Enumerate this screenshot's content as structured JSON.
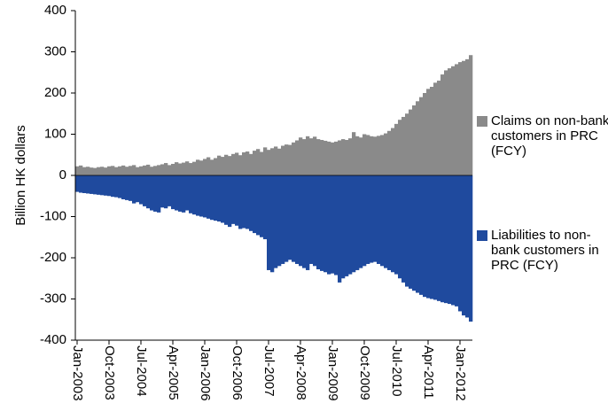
{
  "chart_data": {
    "type": "bar",
    "y_label": "Billion HK dollars",
    "categories": [
      "Jan-2003",
      null,
      null,
      null,
      null,
      null,
      null,
      null,
      null,
      "Oct-2003",
      null,
      null,
      null,
      null,
      null,
      null,
      null,
      null,
      "Jul-2004",
      null,
      null,
      null,
      null,
      null,
      null,
      null,
      null,
      "Apr-2005",
      null,
      null,
      null,
      null,
      null,
      null,
      null,
      null,
      "Jan-2006",
      null,
      null,
      null,
      null,
      null,
      null,
      null,
      null,
      "Oct-2006",
      null,
      null,
      null,
      null,
      null,
      null,
      null,
      null,
      "Jul-2007",
      null,
      null,
      null,
      null,
      null,
      null,
      null,
      null,
      "Apr-2008",
      null,
      null,
      null,
      null,
      null,
      null,
      null,
      null,
      "Jan-2009",
      null,
      null,
      null,
      null,
      null,
      null,
      null,
      null,
      "Oct-2009",
      null,
      null,
      null,
      null,
      null,
      null,
      null,
      null,
      "Jul-2010",
      null,
      null,
      null,
      null,
      null,
      null,
      null,
      null,
      "Apr-2011",
      null,
      null,
      null,
      null,
      null,
      null,
      null,
      null,
      "Jan-2012",
      null,
      null,
      null
    ],
    "series": [
      {
        "name": "Claims on non-bank customers in PRC (FCY)",
        "color": "#8a8a8a",
        "values": [
          22,
          24,
          20,
          21,
          19,
          18,
          20,
          21,
          19,
          22,
          23,
          20,
          22,
          24,
          21,
          23,
          25,
          20,
          22,
          24,
          26,
          21,
          23,
          25,
          27,
          30,
          25,
          28,
          32,
          29,
          31,
          34,
          30,
          33,
          38,
          36,
          40,
          44,
          38,
          42,
          48,
          45,
          50,
          47,
          52,
          55,
          49,
          56,
          58,
          52,
          60,
          64,
          57,
          68,
          62,
          66,
          70,
          65,
          72,
          75,
          74,
          80,
          85,
          92,
          88,
          95,
          90,
          94,
          88,
          86,
          84,
          82,
          80,
          82,
          85,
          88,
          86,
          90,
          105,
          95,
          92,
          100,
          98,
          95,
          94,
          96,
          98,
          102,
          108,
          115,
          125,
          135,
          142,
          150,
          160,
          170,
          180,
          190,
          200,
          210,
          215,
          225,
          230,
          245,
          255,
          260,
          265,
          270,
          275,
          278,
          282,
          292
        ]
      },
      {
        "name": "Liabilities to non-bank customers in PRC (FCY)",
        "color": "#1f4a9e",
        "values": [
          -40,
          -42,
          -43,
          -44,
          -45,
          -46,
          -47,
          -48,
          -49,
          -50,
          -52,
          -53,
          -55,
          -58,
          -60,
          -62,
          -68,
          -65,
          -70,
          -75,
          -80,
          -85,
          -88,
          -90,
          -78,
          -80,
          -75,
          -82,
          -85,
          -88,
          -90,
          -85,
          -92,
          -95,
          -98,
          -100,
          -102,
          -105,
          -108,
          -110,
          -112,
          -115,
          -120,
          -125,
          -118,
          -122,
          -130,
          -128,
          -130,
          -135,
          -140,
          -145,
          -150,
          -155,
          -230,
          -235,
          -225,
          -220,
          -215,
          -210,
          -205,
          -210,
          -215,
          -220,
          -225,
          -230,
          -215,
          -220,
          -228,
          -232,
          -235,
          -240,
          -238,
          -242,
          -260,
          -250,
          -245,
          -240,
          -235,
          -230,
          -225,
          -220,
          -215,
          -212,
          -210,
          -215,
          -220,
          -225,
          -230,
          -235,
          -240,
          -250,
          -260,
          -270,
          -275,
          -280,
          -285,
          -290,
          -295,
          -298,
          -300,
          -302,
          -305,
          -308,
          -310,
          -312,
          -315,
          -318,
          -330,
          -340,
          -345,
          -355
        ]
      }
    ],
    "ylim": [
      -400,
      400
    ],
    "yticks": [
      -400,
      -300,
      -200,
      -100,
      0,
      100,
      200,
      300,
      400
    ],
    "grid": false
  }
}
